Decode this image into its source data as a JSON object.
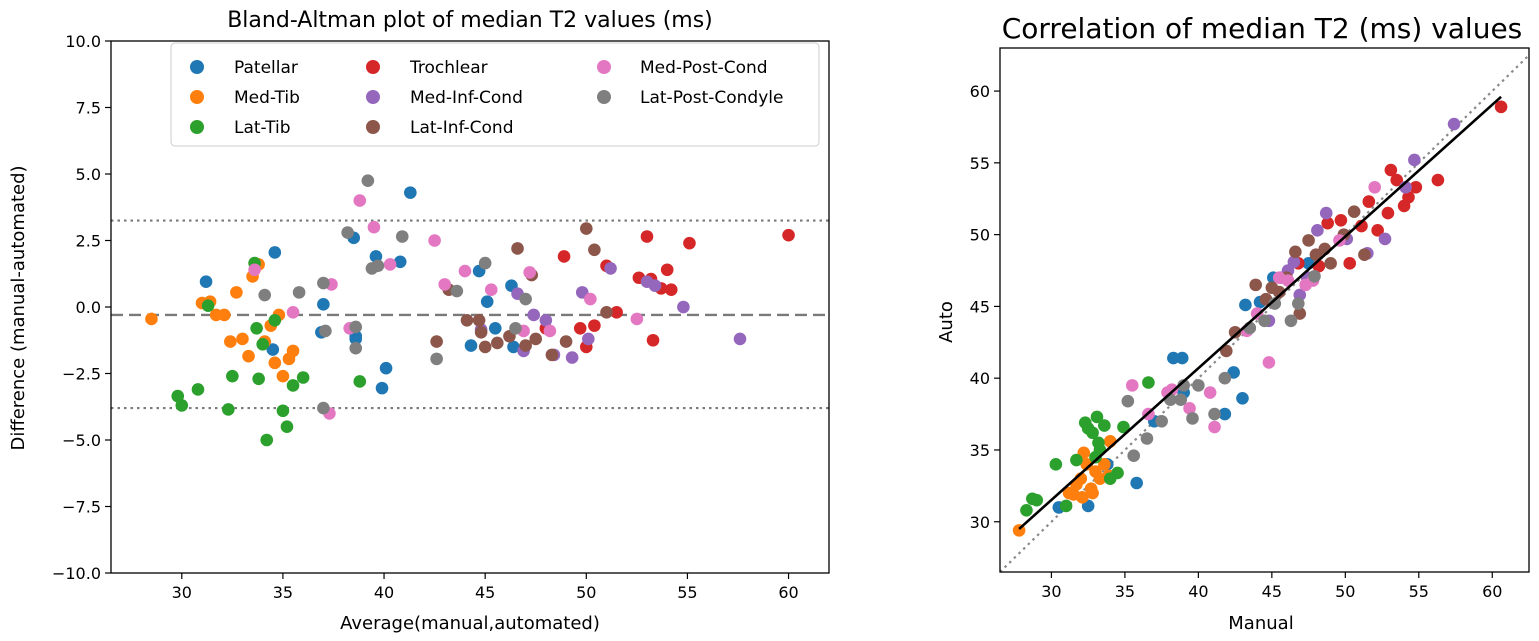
{
  "colors": {
    "Patellar": "#1f77b4",
    "Med-Tib": "#ff7f0e",
    "Lat-Tib": "#2ca02c",
    "Trochlear": "#d62728",
    "Med-Inf-Cond": "#9467bd",
    "Lat-Inf-Cond": "#8c564b",
    "Med-Post-Cond": "#e377c2",
    "Lat-Post-Condyle": "#7f7f7f"
  },
  "chart_data": [
    {
      "type": "scatter",
      "title": "Bland-Altman plot of median T2 values (ms)",
      "xlabel": "Average(manual,automated)",
      "ylabel": "Difference (manual-automated)",
      "xlim": [
        26.5,
        62
      ],
      "ylim": [
        -10,
        10
      ],
      "xticks": [
        "30",
        "35",
        "40",
        "45",
        "50",
        "55",
        "60"
      ],
      "yticks": [
        "10.0",
        "7.5",
        "5.0",
        "2.5",
        "0.0",
        "−2.5",
        "−5.0",
        "−7.5",
        "−10.0"
      ],
      "mean_difference": -0.3,
      "limits_of_agreement": [
        -3.8,
        3.25
      ],
      "legend": {
        "location": "top-center",
        "entries": [
          "Patellar",
          "Med-Tib",
          "Lat-Tib",
          "Trochlear",
          "Med-Inf-Cond",
          "Lat-Inf-Cond",
          "Med-Post-Cond",
          "Lat-Post-Condyle"
        ]
      },
      "series": [
        {
          "name": "Patellar",
          "x": [
            31.2,
            34.6,
            37.0,
            38.5,
            38.6,
            39.6,
            40.1,
            40.8,
            41.3,
            44.7,
            45.1,
            45.5,
            46.3,
            46.4,
            44.3,
            38.6,
            34.5,
            36.9,
            39.9
          ],
          "y": [
            0.95,
            2.05,
            0.1,
            2.6,
            -1.2,
            1.9,
            -2.3,
            1.7,
            4.3,
            1.35,
            0.2,
            -0.8,
            0.8,
            -1.5,
            -1.45,
            -1.1,
            -1.6,
            -0.95,
            -3.05
          ]
        },
        {
          "name": "Med-Tib",
          "x": [
            28.5,
            31.0,
            31.4,
            31.7,
            32.1,
            32.4,
            32.7,
            33.0,
            33.3,
            33.5,
            33.8,
            34.1,
            34.4,
            34.8,
            35.0,
            35.3,
            35.5,
            34.6
          ],
          "y": [
            -0.45,
            0.15,
            0.2,
            -0.3,
            -0.3,
            -1.3,
            0.55,
            -1.2,
            -1.85,
            1.15,
            1.6,
            -1.3,
            -0.7,
            -0.3,
            -2.6,
            -1.95,
            -1.65,
            -2.1
          ]
        },
        {
          "name": "Lat-Tib",
          "x": [
            29.8,
            30.0,
            30.8,
            31.3,
            32.3,
            32.5,
            33.6,
            33.7,
            34.0,
            34.2,
            34.6,
            35.0,
            35.2,
            35.5,
            36.0,
            38.8,
            33.8
          ],
          "y": [
            -3.35,
            -3.7,
            -3.1,
            0.05,
            -3.85,
            -2.6,
            1.65,
            -0.8,
            -1.4,
            -5.0,
            -0.5,
            -3.9,
            -4.5,
            -2.95,
            -2.65,
            -2.8,
            -2.7
          ]
        },
        {
          "name": "Trochlear",
          "x": [
            48.0,
            48.9,
            49.7,
            50.0,
            50.4,
            51.0,
            51.5,
            52.6,
            53.0,
            53.3,
            53.7,
            54.0,
            54.2,
            55.1,
            60.0,
            53.2
          ],
          "y": [
            -0.8,
            1.9,
            -0.8,
            -1.5,
            -0.7,
            1.55,
            -0.2,
            1.1,
            2.65,
            -1.25,
            0.7,
            1.4,
            0.65,
            2.4,
            2.7,
            1.05
          ]
        },
        {
          "name": "Med-Inf-Cond",
          "x": [
            46.6,
            47.4,
            48.4,
            49.3,
            49.8,
            51.2,
            53.0,
            53.4,
            54.8,
            57.6,
            46.9,
            48.0,
            44.8,
            50.1
          ],
          "y": [
            0.5,
            -0.3,
            -1.8,
            -1.9,
            0.55,
            1.45,
            0.95,
            0.8,
            0.0,
            -1.2,
            -1.65,
            -0.5,
            -0.85,
            -1.2
          ]
        },
        {
          "name": "Lat-Inf-Cond",
          "x": [
            42.6,
            43.2,
            44.1,
            44.7,
            45.0,
            45.6,
            46.2,
            46.6,
            47.0,
            47.5,
            48.3,
            49.0,
            50.0,
            50.4,
            51.0,
            44.8,
            47.3
          ],
          "y": [
            -1.3,
            0.65,
            -0.5,
            -0.5,
            -1.5,
            -1.35,
            -1.1,
            2.2,
            -1.45,
            -1.2,
            -1.8,
            -1.3,
            2.95,
            2.15,
            -0.2,
            -0.95,
            1.2
          ]
        },
        {
          "name": "Med-Post-Cond",
          "x": [
            33.6,
            35.5,
            37.4,
            38.3,
            38.8,
            39.5,
            40.3,
            42.5,
            43.0,
            44.0,
            45.3,
            46.9,
            47.2,
            48.2,
            37.3,
            52.5,
            50.2
          ],
          "y": [
            1.4,
            -0.2,
            0.85,
            -0.8,
            4.0,
            3.0,
            1.6,
            2.5,
            0.85,
            1.35,
            0.65,
            -0.9,
            1.3,
            -0.9,
            -4.0,
            -0.45,
            0.3
          ]
        },
        {
          "name": "Lat-Post-Condyle",
          "x": [
            34.1,
            35.8,
            37.0,
            37.1,
            38.2,
            38.6,
            39.2,
            39.4,
            39.7,
            40.9,
            42.6,
            43.6,
            45.0,
            46.5,
            47.0,
            37.0,
            38.6
          ],
          "y": [
            0.45,
            0.55,
            0.9,
            -0.9,
            2.8,
            -0.75,
            4.75,
            1.45,
            1.55,
            2.65,
            -1.95,
            0.6,
            1.65,
            -0.8,
            0.3,
            -3.8,
            -1.55
          ]
        }
      ]
    },
    {
      "type": "scatter",
      "title": "Correlation of median T2 (ms) values",
      "xlabel": "Manual",
      "ylabel": "Auto",
      "xlim": [
        26.5,
        62.5
      ],
      "ylim": [
        26.5,
        63
      ],
      "xticks": [
        "30",
        "35",
        "40",
        "45",
        "50",
        "55",
        "60"
      ],
      "yticks": [
        "60",
        "55",
        "50",
        "45",
        "40",
        "35",
        "30"
      ],
      "fit_line": {
        "x": [
          27.8,
          60.6
        ],
        "y": [
          29.5,
          59.6
        ]
      },
      "identity_line": true,
      "series": [
        {
          "name": "Patellar",
          "x": [
            30.5,
            32.5,
            33.8,
            35.8,
            37.0,
            38.3,
            38.9,
            42.4,
            43.0,
            43.2,
            44.2,
            45.1,
            47.5,
            41.8,
            39.0
          ],
          "y": [
            31.0,
            31.1,
            34.0,
            32.7,
            37.0,
            41.4,
            41.4,
            40.4,
            38.6,
            45.1,
            45.3,
            47.0,
            48.0,
            37.5,
            39.0
          ]
        },
        {
          "name": "Med-Tib",
          "x": [
            27.8,
            31.2,
            31.7,
            32.0,
            32.2,
            32.4,
            32.7,
            33.0,
            33.3,
            33.6,
            34.0,
            32.1,
            31.5,
            32.8,
            33.9
          ],
          "y": [
            29.4,
            32.0,
            32.6,
            33.0,
            34.8,
            34.0,
            32.3,
            33.5,
            33.0,
            34.0,
            35.6,
            31.7,
            31.9,
            32.0,
            33.2
          ]
        },
        {
          "name": "Lat-Tib",
          "x": [
            28.3,
            28.7,
            29.0,
            30.3,
            31.0,
            31.7,
            32.3,
            32.5,
            32.8,
            33.1,
            33.3,
            33.6,
            34.0,
            34.5,
            34.9,
            36.6,
            33.2,
            33.0
          ],
          "y": [
            30.8,
            31.6,
            31.5,
            34.0,
            31.1,
            34.3,
            36.9,
            36.5,
            36.2,
            37.3,
            35.0,
            36.7,
            33.0,
            33.4,
            36.6,
            39.7,
            35.5,
            34.5
          ]
        },
        {
          "name": "Trochlear",
          "x": [
            46.8,
            48.2,
            48.8,
            49.7,
            50.3,
            51.1,
            51.6,
            52.2,
            52.9,
            53.1,
            53.5,
            54.0,
            54.3,
            54.8,
            56.3,
            60.6
          ],
          "y": [
            48.0,
            47.8,
            50.8,
            51.0,
            48.0,
            50.6,
            52.3,
            50.3,
            51.5,
            54.5,
            53.8,
            52.0,
            52.6,
            53.3,
            53.8,
            58.9
          ]
        },
        {
          "name": "Med-Inf-Cond",
          "x": [
            44.8,
            45.6,
            46.1,
            46.5,
            47.4,
            48.1,
            48.7,
            50.1,
            51.5,
            52.7,
            54.1,
            54.7,
            57.4,
            46.9
          ],
          "y": [
            44.0,
            47.0,
            47.5,
            48.1,
            47.0,
            50.3,
            51.5,
            49.7,
            48.7,
            49.7,
            53.3,
            55.2,
            57.7,
            45.8
          ]
        },
        {
          "name": "Lat-Inf-Cond",
          "x": [
            41.9,
            42.5,
            43.9,
            44.6,
            45.0,
            45.5,
            46.6,
            46.9,
            47.5,
            48.0,
            48.6,
            49.0,
            49.9,
            50.6,
            51.3,
            46.0
          ],
          "y": [
            41.9,
            43.2,
            46.5,
            45.5,
            46.3,
            46.0,
            48.8,
            44.5,
            49.6,
            48.6,
            49.0,
            48.0,
            50.0,
            51.6,
            48.6,
            47.0
          ]
        },
        {
          "name": "Med-Post-Cond",
          "x": [
            35.5,
            37.9,
            38.2,
            40.8,
            41.1,
            43.3,
            44.0,
            44.8,
            45.5,
            46.1,
            47.3,
            47.8,
            49.6,
            52.0,
            36.6,
            39.4
          ],
          "y": [
            39.5,
            39.0,
            39.2,
            39.0,
            36.6,
            43.3,
            44.5,
            41.1,
            47.0,
            46.8,
            46.5,
            46.8,
            49.6,
            53.3,
            37.5,
            37.9
          ]
        },
        {
          "name": "Lat-Post-Condyle",
          "x": [
            35.2,
            35.6,
            36.5,
            37.5,
            38.1,
            38.8,
            39.6,
            40.0,
            41.1,
            41.8,
            43.5,
            44.5,
            45.2,
            46.3,
            46.8,
            47.9,
            39.0
          ],
          "y": [
            38.4,
            34.6,
            35.8,
            37.0,
            38.5,
            38.5,
            37.2,
            39.5,
            37.5,
            40.0,
            43.5,
            44.0,
            45.2,
            44.0,
            45.2,
            47.1,
            39.5
          ]
        }
      ]
    }
  ]
}
